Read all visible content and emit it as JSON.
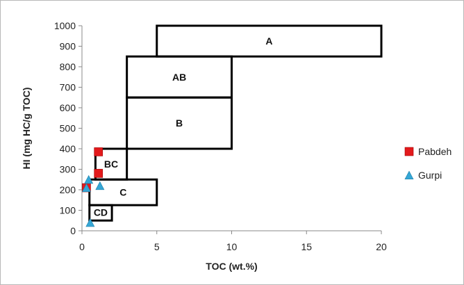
{
  "chart_data": {
    "type": "scatter",
    "xlabel": "TOC (wt.%)",
    "ylabel": "HI (mg HC/g TOC)",
    "xlim": [
      0,
      20
    ],
    "ylim": [
      0,
      1000
    ],
    "x_ticks": [
      0,
      5,
      10,
      15,
      20
    ],
    "y_ticks": [
      0,
      100,
      200,
      300,
      400,
      500,
      600,
      700,
      800,
      900,
      1000
    ],
    "grid": false,
    "legend_position": "right",
    "regions": [
      {
        "label": "A",
        "x0": 5,
        "x1": 20,
        "y0": 850,
        "y1": 1000
      },
      {
        "label": "AB",
        "x0": 3,
        "x1": 10,
        "y0": 650,
        "y1": 850
      },
      {
        "label": "B",
        "x0": 3,
        "x1": 10,
        "y0": 400,
        "y1": 650
      },
      {
        "label": "BC",
        "x0": 0.9,
        "x1": 3,
        "y0": 250,
        "y1": 400
      },
      {
        "label": "C",
        "x0": 0.5,
        "x1": 5,
        "y0": 125,
        "y1": 250
      },
      {
        "label": "CD",
        "x0": 0.5,
        "x1": 2,
        "y0": 50,
        "y1": 125
      }
    ],
    "series": [
      {
        "name": "Pabdeh",
        "marker": "square",
        "color": "#e31a1c",
        "points": [
          {
            "x": 1.1,
            "y": 385
          },
          {
            "x": 1.1,
            "y": 280
          },
          {
            "x": 0.3,
            "y": 210
          }
        ]
      },
      {
        "name": "Gurpi",
        "marker": "triangle",
        "color": "#35a7d6",
        "points": [
          {
            "x": 0.45,
            "y": 250
          },
          {
            "x": 1.2,
            "y": 220
          },
          {
            "x": 0.3,
            "y": 210
          },
          {
            "x": 0.55,
            "y": 40
          }
        ]
      }
    ]
  }
}
